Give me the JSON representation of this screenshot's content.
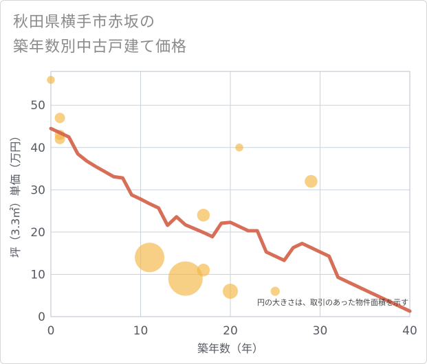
{
  "page": {
    "title_line1": "秋田県横手市赤坂の",
    "title_line2": "築年数別中古戸建て価格"
  },
  "chart_data": {
    "type": "scatter",
    "title": "秋田県横手市赤坂の築年数別中古戸建て価格",
    "xlabel": "築年数（年）",
    "ylabel": "坪（3.3㎡）単価（万円）",
    "xlim": [
      0,
      40
    ],
    "ylim": [
      0,
      58
    ],
    "xticks": [
      0,
      10,
      20,
      30,
      40
    ],
    "yticks": [
      0,
      10,
      20,
      30,
      40,
      50
    ],
    "grid": true,
    "note": "円の大きさは、取引のあった物件面積を示す",
    "colors": {
      "bubble": "#f2b544",
      "line": "#d4634a",
      "grid": "#c9d3de"
    },
    "scatter": [
      {
        "x": 0,
        "y": 56,
        "size": 1
      },
      {
        "x": 1,
        "y": 47,
        "size": 2
      },
      {
        "x": 1,
        "y": 43,
        "size": 2
      },
      {
        "x": 1,
        "y": 42,
        "size": 2
      },
      {
        "x": 11,
        "y": 14,
        "size": 10
      },
      {
        "x": 15,
        "y": 9,
        "size": 12
      },
      {
        "x": 17,
        "y": 24,
        "size": 3
      },
      {
        "x": 17,
        "y": 11,
        "size": 3
      },
      {
        "x": 20,
        "y": 6,
        "size": 4
      },
      {
        "x": 21,
        "y": 40,
        "size": 1
      },
      {
        "x": 25,
        "y": 6,
        "size": 1.5
      },
      {
        "x": 29,
        "y": 32,
        "size": 3
      }
    ],
    "trend": {
      "x": [
        0,
        1,
        2,
        3,
        4,
        5,
        6,
        7,
        8,
        9,
        10,
        11,
        12,
        13,
        14,
        15,
        16,
        17,
        18,
        19,
        20,
        21,
        22,
        23,
        24,
        25,
        26,
        27,
        28,
        29,
        30,
        31,
        32,
        33,
        34,
        35,
        36,
        37,
        38,
        39,
        40
      ],
      "y": [
        44.5,
        43.5,
        42.5,
        38.5,
        36.8,
        35.5,
        34.3,
        33.1,
        32.8,
        28.8,
        27.8,
        26.7,
        25.7,
        21.6,
        23.6,
        21.7,
        20.8,
        19.9,
        18.9,
        22.1,
        22.3,
        21.3,
        20.3,
        20.3,
        15.3,
        14.3,
        13.3,
        16.3,
        17.3,
        16.3,
        15.3,
        14.3,
        9.3,
        8.3,
        7.3,
        6.3,
        5.3,
        4.3,
        3.3,
        2.3,
        1.3
      ]
    }
  }
}
